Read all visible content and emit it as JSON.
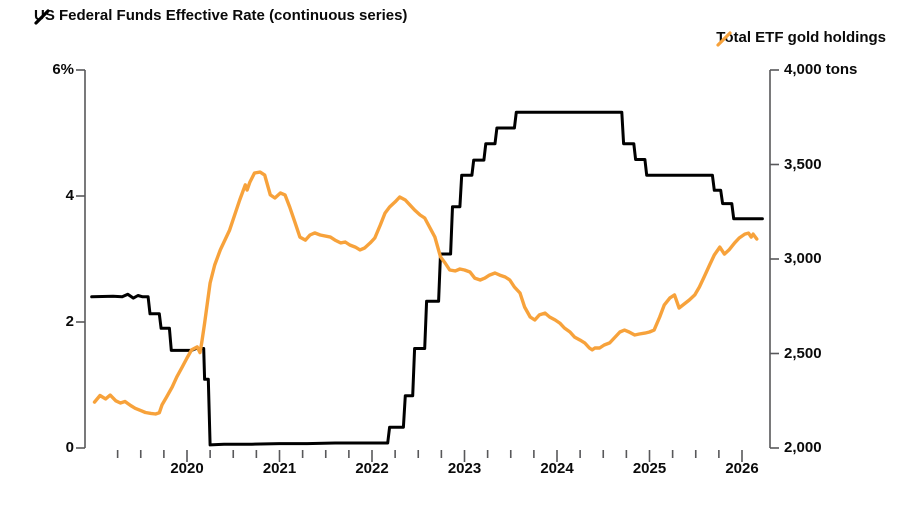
{
  "legend": {
    "left": {
      "label": "US Federal Funds Effective Rate (continuous series)",
      "color": "#000000"
    },
    "right": {
      "label": "Total ETF gold holdings",
      "color": "#F7A23B"
    }
  },
  "colors": {
    "fed_line": "#000000",
    "gold_line": "#F7A23B",
    "axis": "#58585a",
    "text": "#0a0a0a"
  },
  "chart_data": {
    "type": "line",
    "title": "",
    "grid": false,
    "legend_position": "top",
    "x_axis": {
      "labels": [
        "2020",
        "2021",
        "2022",
        "2023",
        "2024",
        "2025",
        "2026"
      ],
      "values": [
        2020,
        2021,
        2022,
        2023,
        2024,
        2025,
        2026
      ],
      "minor_tick_interval_years": 0.25,
      "range": [
        2018.95,
        2026.3
      ]
    },
    "y_axis_left": {
      "tick_labels": [
        "6%",
        "4",
        "2",
        "0"
      ],
      "tick_values": [
        6,
        4,
        2,
        0
      ],
      "range": [
        0,
        6
      ],
      "unit": "%"
    },
    "y_axis_right": {
      "tick_labels": [
        "4,000 tons",
        "3,500",
        "3,000",
        "2,500",
        "2,000"
      ],
      "tick_values": [
        4000,
        3500,
        3000,
        2500,
        2000
      ],
      "range": [
        2000,
        4000
      ],
      "unit": "tons"
    },
    "series": [
      {
        "name": "US Federal Funds Effective Rate (continuous series)",
        "axis": "left",
        "color": "#000000",
        "style": "step",
        "unit": "%",
        "points": [
          [
            2018.97,
            2.4
          ],
          [
            2019.2,
            2.41
          ],
          [
            2019.3,
            2.4
          ],
          [
            2019.36,
            2.44
          ],
          [
            2019.42,
            2.38
          ],
          [
            2019.47,
            2.42
          ],
          [
            2019.52,
            2.4
          ],
          [
            2019.58,
            2.4
          ],
          [
            2019.6,
            2.13
          ],
          [
            2019.7,
            2.13
          ],
          [
            2019.72,
            1.9
          ],
          [
            2019.81,
            1.9
          ],
          [
            2019.83,
            1.55
          ],
          [
            2020.05,
            1.55
          ],
          [
            2020.1,
            1.58
          ],
          [
            2020.18,
            1.58
          ],
          [
            2020.19,
            1.09
          ],
          [
            2020.23,
            1.09
          ],
          [
            2020.25,
            0.05
          ],
          [
            2020.4,
            0.06
          ],
          [
            2020.7,
            0.06
          ],
          [
            2021.0,
            0.07
          ],
          [
            2021.3,
            0.07
          ],
          [
            2021.6,
            0.08
          ],
          [
            2021.9,
            0.08
          ],
          [
            2022.17,
            0.08
          ],
          [
            2022.19,
            0.33
          ],
          [
            2022.34,
            0.33
          ],
          [
            2022.36,
            0.83
          ],
          [
            2022.44,
            0.83
          ],
          [
            2022.46,
            1.58
          ],
          [
            2022.57,
            1.58
          ],
          [
            2022.59,
            2.33
          ],
          [
            2022.72,
            2.33
          ],
          [
            2022.74,
            3.08
          ],
          [
            2022.85,
            3.08
          ],
          [
            2022.87,
            3.83
          ],
          [
            2022.95,
            3.83
          ],
          [
            2022.97,
            4.33
          ],
          [
            2023.08,
            4.33
          ],
          [
            2023.1,
            4.57
          ],
          [
            2023.21,
            4.57
          ],
          [
            2023.23,
            4.83
          ],
          [
            2023.33,
            4.83
          ],
          [
            2023.35,
            5.08
          ],
          [
            2023.54,
            5.08
          ],
          [
            2023.56,
            5.33
          ],
          [
            2024.7,
            5.33
          ],
          [
            2024.72,
            4.83
          ],
          [
            2024.83,
            4.83
          ],
          [
            2024.85,
            4.58
          ],
          [
            2024.95,
            4.58
          ],
          [
            2024.97,
            4.33
          ],
          [
            2025.68,
            4.33
          ],
          [
            2025.7,
            4.09
          ],
          [
            2025.77,
            4.09
          ],
          [
            2025.79,
            3.88
          ],
          [
            2025.89,
            3.88
          ],
          [
            2025.91,
            3.64
          ],
          [
            2026.22,
            3.64
          ]
        ]
      },
      {
        "name": "Total ETF gold holdings",
        "axis": "right",
        "color": "#F7A23B",
        "style": "line",
        "unit": "tons",
        "points": [
          [
            2019.0,
            2243
          ],
          [
            2019.06,
            2278
          ],
          [
            2019.12,
            2260
          ],
          [
            2019.17,
            2280
          ],
          [
            2019.23,
            2250
          ],
          [
            2019.28,
            2238
          ],
          [
            2019.33,
            2246
          ],
          [
            2019.39,
            2225
          ],
          [
            2019.44,
            2210
          ],
          [
            2019.5,
            2198
          ],
          [
            2019.55,
            2188
          ],
          [
            2019.61,
            2183
          ],
          [
            2019.66,
            2180
          ],
          [
            2019.7,
            2186
          ],
          [
            2019.73,
            2228
          ],
          [
            2019.78,
            2270
          ],
          [
            2019.84,
            2323
          ],
          [
            2019.89,
            2376
          ],
          [
            2019.95,
            2430
          ],
          [
            2020.0,
            2476
          ],
          [
            2020.05,
            2519
          ],
          [
            2020.11,
            2535
          ],
          [
            2020.14,
            2505
          ],
          [
            2020.16,
            2560
          ],
          [
            2020.19,
            2660
          ],
          [
            2020.25,
            2873
          ],
          [
            2020.3,
            2968
          ],
          [
            2020.36,
            3048
          ],
          [
            2020.46,
            3153
          ],
          [
            2020.57,
            3312
          ],
          [
            2020.63,
            3392
          ],
          [
            2020.65,
            3365
          ],
          [
            2020.68,
            3407
          ],
          [
            2020.73,
            3455
          ],
          [
            2020.79,
            3460
          ],
          [
            2020.84,
            3444
          ],
          [
            2020.9,
            3339
          ],
          [
            2020.95,
            3323
          ],
          [
            2021.01,
            3349
          ],
          [
            2021.06,
            3339
          ],
          [
            2021.11,
            3275
          ],
          [
            2021.17,
            3190
          ],
          [
            2021.22,
            3116
          ],
          [
            2021.28,
            3100
          ],
          [
            2021.33,
            3127
          ],
          [
            2021.38,
            3138
          ],
          [
            2021.44,
            3127
          ],
          [
            2021.55,
            3116
          ],
          [
            2021.6,
            3100
          ],
          [
            2021.66,
            3085
          ],
          [
            2021.71,
            3090
          ],
          [
            2021.76,
            3074
          ],
          [
            2021.82,
            3063
          ],
          [
            2021.87,
            3048
          ],
          [
            2021.92,
            3058
          ],
          [
            2021.98,
            3085
          ],
          [
            2022.03,
            3111
          ],
          [
            2022.09,
            3180
          ],
          [
            2022.14,
            3243
          ],
          [
            2022.19,
            3275
          ],
          [
            2022.25,
            3302
          ],
          [
            2022.3,
            3328
          ],
          [
            2022.36,
            3312
          ],
          [
            2022.41,
            3286
          ],
          [
            2022.46,
            3259
          ],
          [
            2022.52,
            3233
          ],
          [
            2022.57,
            3217
          ],
          [
            2022.68,
            3116
          ],
          [
            2022.74,
            3011
          ],
          [
            2022.79,
            2979
          ],
          [
            2022.84,
            2942
          ],
          [
            2022.9,
            2937
          ],
          [
            2022.95,
            2947
          ],
          [
            2023.0,
            2942
          ],
          [
            2023.06,
            2931
          ],
          [
            2023.11,
            2899
          ],
          [
            2023.17,
            2889
          ],
          [
            2023.22,
            2899
          ],
          [
            2023.27,
            2915
          ],
          [
            2023.33,
            2926
          ],
          [
            2023.38,
            2915
          ],
          [
            2023.44,
            2905
          ],
          [
            2023.49,
            2889
          ],
          [
            2023.54,
            2852
          ],
          [
            2023.6,
            2820
          ],
          [
            2023.65,
            2746
          ],
          [
            2023.71,
            2693
          ],
          [
            2023.76,
            2677
          ],
          [
            2023.81,
            2704
          ],
          [
            2023.87,
            2714
          ],
          [
            2023.92,
            2693
          ],
          [
            2023.98,
            2677
          ],
          [
            2024.03,
            2661
          ],
          [
            2024.08,
            2635
          ],
          [
            2024.14,
            2614
          ],
          [
            2024.19,
            2587
          ],
          [
            2024.25,
            2571
          ],
          [
            2024.3,
            2556
          ],
          [
            2024.35,
            2529
          ],
          [
            2024.38,
            2519
          ],
          [
            2024.41,
            2529
          ],
          [
            2024.46,
            2529
          ],
          [
            2024.51,
            2545
          ],
          [
            2024.57,
            2556
          ],
          [
            2024.68,
            2614
          ],
          [
            2024.73,
            2624
          ],
          [
            2024.78,
            2614
          ],
          [
            2024.84,
            2598
          ],
          [
            2024.89,
            2603
          ],
          [
            2024.95,
            2608
          ],
          [
            2025.0,
            2614
          ],
          [
            2025.05,
            2624
          ],
          [
            2025.11,
            2693
          ],
          [
            2025.16,
            2757
          ],
          [
            2025.22,
            2794
          ],
          [
            2025.27,
            2810
          ],
          [
            2025.32,
            2741
          ],
          [
            2025.43,
            2783
          ],
          [
            2025.49,
            2810
          ],
          [
            2025.54,
            2852
          ],
          [
            2025.59,
            2905
          ],
          [
            2025.65,
            2968
          ],
          [
            2025.7,
            3021
          ],
          [
            2025.76,
            3063
          ],
          [
            2025.81,
            3026
          ],
          [
            2025.86,
            3048
          ],
          [
            2025.92,
            3085
          ],
          [
            2025.97,
            3111
          ],
          [
            2026.03,
            3132
          ],
          [
            2026.07,
            3137
          ],
          [
            2026.1,
            3116
          ],
          [
            2026.12,
            3132
          ],
          [
            2026.16,
            3106
          ]
        ]
      }
    ]
  }
}
